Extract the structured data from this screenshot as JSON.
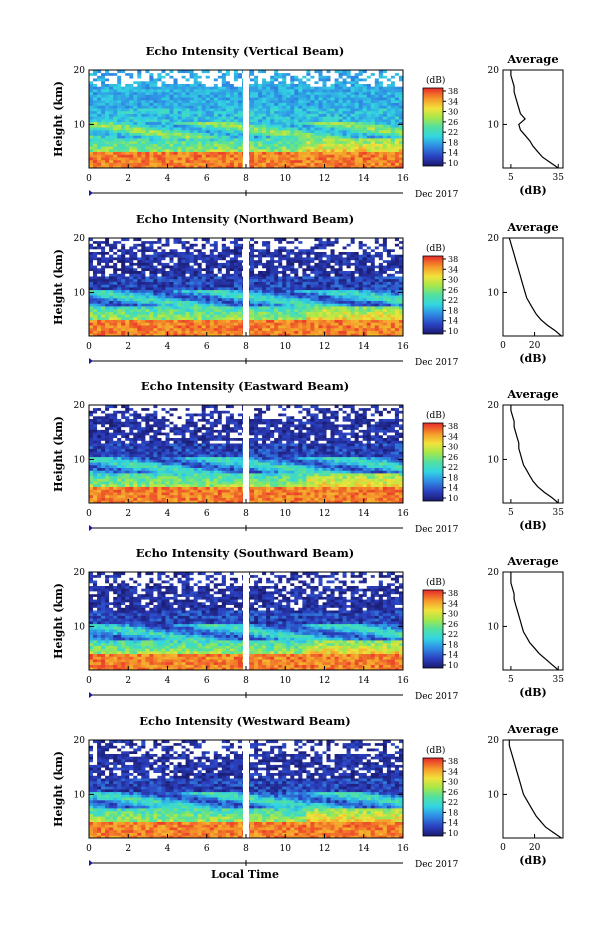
{
  "chart_data": [
    {
      "type": "heatmap",
      "title": "Echo Intensity (Vertical Beam)",
      "ylabel": "Height (km)",
      "xticks": [
        "0",
        "2",
        "4",
        "6",
        "8",
        "10",
        "12",
        "14",
        "16"
      ],
      "yticks": [
        "10",
        "20"
      ],
      "date_label": "Dec 2017",
      "colorbar": {
        "label": "(dB)",
        "ticks": [
          "10",
          "14",
          "18",
          "22",
          "26",
          "30",
          "34",
          "38"
        ]
      },
      "profile": {
        "title": "Average",
        "xlabel": "(dB)",
        "xticks": [
          "5",
          "35"
        ],
        "yticks": [
          "10",
          "20"
        ],
        "height_km": [
          2,
          3,
          4,
          5,
          6,
          7,
          8,
          9,
          10,
          11,
          12,
          13,
          14,
          15,
          16,
          17,
          18,
          19,
          20
        ],
        "db": [
          35,
          30,
          25,
          22,
          19,
          17,
          14,
          11,
          10,
          14,
          11,
          10,
          9,
          8,
          7,
          7,
          6,
          5,
          5
        ]
      }
    },
    {
      "type": "heatmap",
      "title": "Echo Intensity (Northward Beam)",
      "ylabel": "Height (km)",
      "xticks": [
        "0",
        "2",
        "4",
        "6",
        "8",
        "10",
        "12",
        "14",
        "16"
      ],
      "yticks": [
        "10",
        "20"
      ],
      "date_label": "Dec 2017",
      "colorbar": {
        "label": "(dB)",
        "ticks": [
          "10",
          "14",
          "18",
          "22",
          "26",
          "30",
          "34",
          "38"
        ]
      },
      "profile": {
        "title": "Average",
        "xlabel": "(dB)",
        "xticks": [
          "0",
          "20"
        ],
        "yticks": [
          "10",
          "20"
        ],
        "height_km": [
          2,
          3,
          4,
          5,
          6,
          7,
          8,
          9,
          10,
          11,
          12,
          13,
          14,
          15,
          16,
          17,
          18,
          19,
          20
        ],
        "db": [
          37,
          33,
          28,
          24,
          21,
          19,
          17,
          15,
          14,
          13,
          12,
          11,
          10,
          9,
          8,
          7,
          6,
          5,
          4
        ]
      }
    },
    {
      "type": "heatmap",
      "title": "Echo Intensity (Eastward Beam)",
      "ylabel": "Height (km)",
      "xticks": [
        "0",
        "2",
        "4",
        "6",
        "8",
        "10",
        "12",
        "14",
        "16"
      ],
      "yticks": [
        "10",
        "20"
      ],
      "date_label": "Dec 2017",
      "colorbar": {
        "label": "(dB)",
        "ticks": [
          "10",
          "14",
          "18",
          "22",
          "26",
          "30",
          "34",
          "38"
        ]
      },
      "profile": {
        "title": "Average",
        "xlabel": "(dB)",
        "xticks": [
          "5",
          "35"
        ],
        "yticks": [
          "10",
          "20"
        ],
        "height_km": [
          2,
          3,
          4,
          5,
          6,
          7,
          8,
          9,
          10,
          11,
          12,
          13,
          14,
          15,
          16,
          17,
          18,
          19,
          20
        ],
        "db": [
          35,
          31,
          26,
          22,
          19,
          17,
          15,
          13,
          12,
          11,
          10,
          10,
          9,
          8,
          7,
          7,
          6,
          5,
          5
        ]
      }
    },
    {
      "type": "heatmap",
      "title": "Echo Intensity (Southward Beam)",
      "ylabel": "Height (km)",
      "xticks": [
        "0",
        "2",
        "4",
        "6",
        "8",
        "10",
        "12",
        "14",
        "16"
      ],
      "yticks": [
        "10",
        "20"
      ],
      "date_label": "Dec 2017",
      "colorbar": {
        "label": "(dB)",
        "ticks": [
          "10",
          "14",
          "18",
          "22",
          "26",
          "30",
          "34",
          "38"
        ]
      },
      "profile": {
        "title": "Average",
        "xlabel": "(dB)",
        "xticks": [
          "5",
          "35"
        ],
        "yticks": [
          "10",
          "20"
        ],
        "height_km": [
          2,
          3,
          4,
          5,
          6,
          7,
          8,
          9,
          10,
          11,
          12,
          13,
          14,
          15,
          16,
          17,
          18,
          19,
          20
        ],
        "db": [
          35,
          31,
          27,
          23,
          20,
          17,
          15,
          13,
          12,
          11,
          10,
          9,
          8,
          7,
          7,
          6,
          5,
          5,
          5
        ]
      }
    },
    {
      "type": "heatmap",
      "title": "Echo Intensity (Westward Beam)",
      "ylabel": "Height (km)",
      "xticks": [
        "0",
        "2",
        "4",
        "6",
        "8",
        "10",
        "12",
        "14",
        "16"
      ],
      "yticks": [
        "10",
        "20"
      ],
      "date_label": "Dec 2017",
      "colorbar": {
        "label": "(dB)",
        "ticks": [
          "10",
          "14",
          "18",
          "22",
          "26",
          "30",
          "34",
          "38"
        ]
      },
      "profile": {
        "title": "Average",
        "xlabel": "(dB)",
        "xticks": [
          "0",
          "20"
        ],
        "yticks": [
          "10",
          "20"
        ],
        "height_km": [
          2,
          3,
          4,
          5,
          6,
          7,
          8,
          9,
          10,
          11,
          12,
          13,
          14,
          15,
          16,
          17,
          18,
          19,
          20
        ],
        "db": [
          37,
          32,
          27,
          24,
          21,
          19,
          17,
          15,
          13,
          12,
          11,
          10,
          9,
          8,
          7,
          6,
          5,
          4,
          4
        ]
      }
    }
  ],
  "xlabel": "Local Time"
}
